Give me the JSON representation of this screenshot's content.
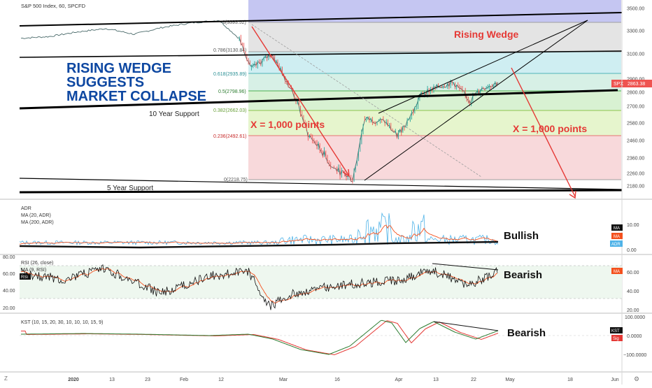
{
  "header": {
    "title": "S&P 500 Index, 60, SPCFD"
  },
  "annotations": {
    "headline_lines": [
      "RISING WEDGE",
      "SUGGESTS",
      "MARKET COLLAPSE"
    ],
    "rising_wedge": "Rising Wedge",
    "x_points_left": "X = 1,000 points",
    "x_points_right": "X = 1,000 points",
    "ten_year_support": "10 Year Support",
    "five_year_support": "5 Year Support",
    "bullish": "Bullish",
    "bearish_rsi": "Bearish",
    "bearish_kst": "Bearish"
  },
  "price_badge": {
    "symbol": "SPX",
    "value": "2863.38"
  },
  "fib_levels": [
    {
      "label": "1(3393.52)",
      "value": 3393.52
    },
    {
      "label": "0.786(3130.84)",
      "value": 3130.84
    },
    {
      "label": "0.618(2935.89)",
      "value": 2935.89
    },
    {
      "label": "0.5(2798.96)",
      "value": 2798.96
    },
    {
      "label": "0.382(2662.03)",
      "value": 2662.03
    },
    {
      "label": "0.236(2492.61)",
      "value": 2492.61
    },
    {
      "label": "0(2218.75)",
      "value": 2218.75
    }
  ],
  "x_axis_labels": [
    "2020",
    "13",
    "23",
    "Feb",
    "12",
    "Mar",
    "16",
    "Apr",
    "13",
    "22",
    "May",
    "18",
    "Jun"
  ],
  "indicators": {
    "adr": {
      "legend": [
        "ADR",
        "MA (20, ADR)",
        "MA (200, ADR)"
      ],
      "axis_labels": [
        "10.00",
        "0.00"
      ],
      "badges": [
        "MA",
        "MA",
        "ADR"
      ]
    },
    "rsi": {
      "legend": [
        "RSI (26, close)",
        "MA (9, RSI)"
      ],
      "left_labels": [
        "80.00",
        "60.00",
        "40.00",
        "20.00"
      ],
      "right_labels": [
        "60.00",
        "40.00",
        "20.00"
      ],
      "badges": [
        "RSI",
        "MA"
      ]
    },
    "kst": {
      "legend": [
        "KST (10, 15, 20, 30, 10, 10, 10, 15, 9)"
      ],
      "axis_labels": [
        "100.0000",
        "0.0000",
        "−100.0000"
      ],
      "badges": [
        "KST",
        "Sig"
      ]
    }
  },
  "colors": {
    "red_annotation": "#e53935",
    "headline_blue": "#0d47a1",
    "price_up": "#26a69a",
    "price_down": "#ef5350",
    "adr_line": "#4fb3e8",
    "rsi_line": "#111111",
    "ma_line": "#f4511e"
  },
  "chart_data": {
    "type": "line",
    "title": "S&P 500 Index, 60, SPCFD",
    "y_ticks": [
      3500,
      3300,
      3100,
      2900,
      2800,
      2700,
      2580,
      2460,
      2360,
      2260,
      2180
    ],
    "series": [
      {
        "name": "SPX",
        "points": [
          [
            "2020-01-01",
            3235
          ],
          [
            "2020-01-08",
            3250
          ],
          [
            "2020-01-15",
            3290
          ],
          [
            "2020-01-22",
            3320
          ],
          [
            "2020-01-29",
            3270
          ],
          [
            "2020-02-05",
            3330
          ],
          [
            "2020-02-12",
            3370
          ],
          [
            "2020-02-19",
            3393
          ],
          [
            "2020-02-24",
            3230
          ],
          [
            "2020-02-27",
            2980
          ],
          [
            "2020-03-03",
            3100
          ],
          [
            "2020-03-09",
            2750
          ],
          [
            "2020-03-12",
            2500
          ],
          [
            "2020-03-16",
            2380
          ],
          [
            "2020-03-18",
            2300
          ],
          [
            "2020-03-23",
            2220
          ],
          [
            "2020-03-26",
            2610
          ],
          [
            "2020-03-31",
            2590
          ],
          [
            "2020-04-03",
            2490
          ],
          [
            "2020-04-07",
            2660
          ],
          [
            "2020-04-09",
            2790
          ],
          [
            "2020-04-14",
            2850
          ],
          [
            "2020-04-17",
            2870
          ],
          [
            "2020-04-21",
            2740
          ],
          [
            "2020-04-24",
            2830
          ],
          [
            "2020-04-28",
            2875
          ]
        ]
      }
    ],
    "current_value": 2863.38
  }
}
